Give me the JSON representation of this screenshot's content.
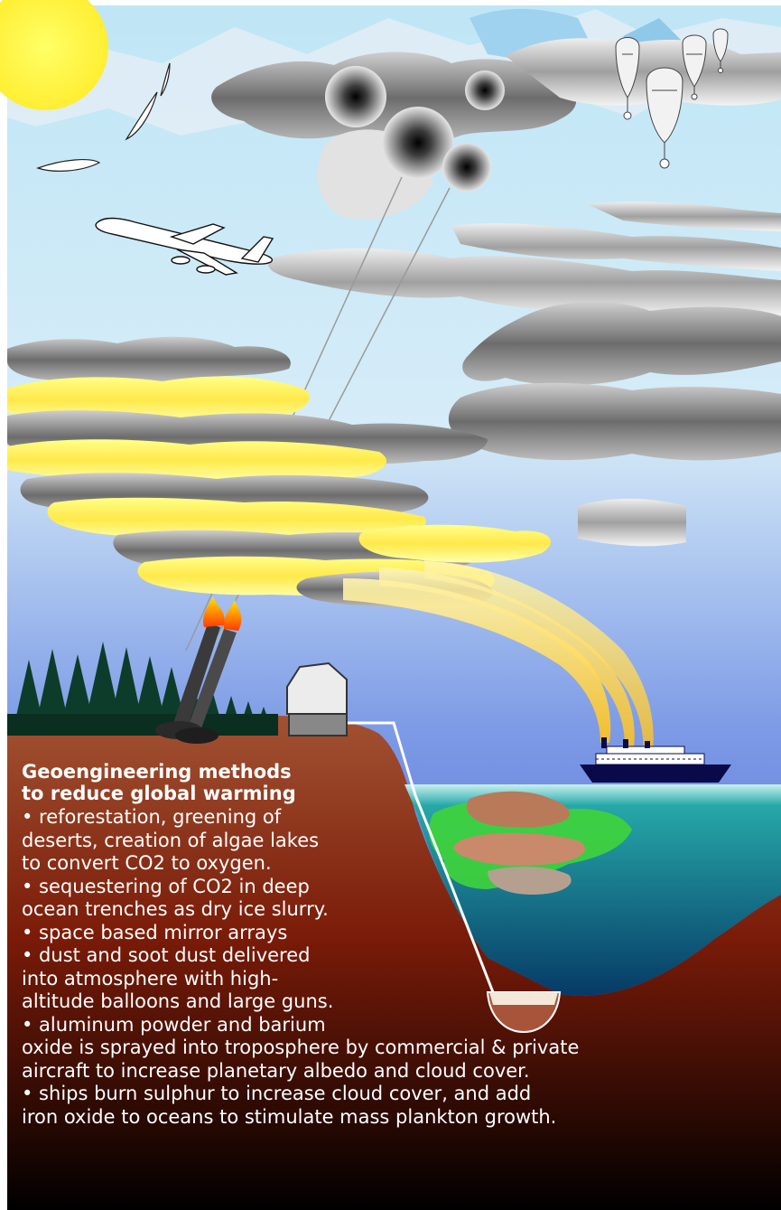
{
  "title": {
    "line1": "Geoengineering methods",
    "line2": "to reduce global warming"
  },
  "body_lines": [
    "• reforestation, greening of",
    "deserts, creation of algae lakes",
    "to convert CO2 to oxygen.",
    "• sequestering of CO2 in deep",
    "ocean trenches as dry ice slurry.",
    "• space based mirror arrays",
    "• dust and soot dust delivered",
    "into atmosphere with high-",
    "altitude balloons and large guns.",
    "• aluminum powder and barium",
    "oxide is sprayed into troposphere by commercial & private",
    "aircraft to increase planetary albedo and cloud cover.",
    "• ships burn sulphur to increase cloud cover, and add",
    "iron oxide to oceans to stimulate mass plankton growth."
  ],
  "colors": {
    "sky_top": "#bfe6f6",
    "sky_bottom": "#3540c8",
    "ground_top": "#a25232",
    "ground_bottom": "#000000",
    "sun": "#ffff44",
    "ocean": "#0c6e86",
    "haze": "#ffee66"
  }
}
